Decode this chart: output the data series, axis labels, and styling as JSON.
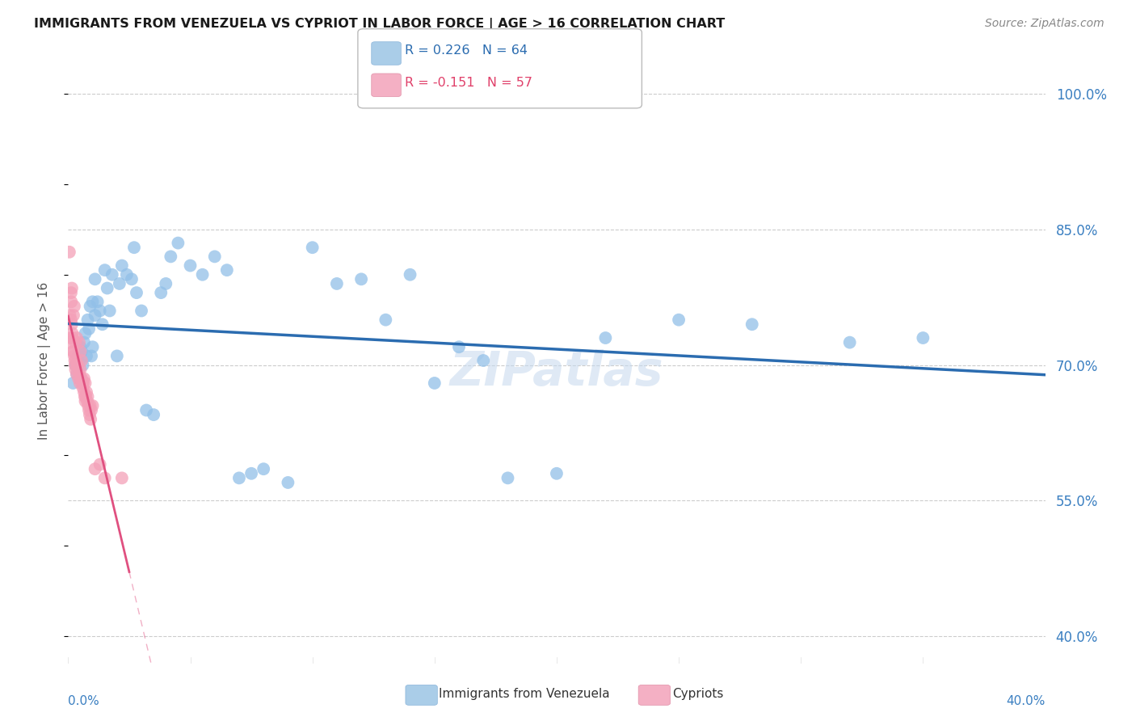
{
  "title": "IMMIGRANTS FROM VENEZUELA VS CYPRIOT IN LABOR FORCE | AGE > 16 CORRELATION CHART",
  "source": "Source: ZipAtlas.com",
  "ylabel": "In Labor Force | Age > 16",
  "yticks": [
    40.0,
    55.0,
    70.0,
    85.0,
    100.0
  ],
  "ytick_labels": [
    "40.0%",
    "55.0%",
    "70.0%",
    "85.0%",
    "100.0%"
  ],
  "xmin": 0.0,
  "xmax": 40.0,
  "ymin": 37.0,
  "ymax": 104.0,
  "watermark": "ZIPatlas",
  "venezuela_R": 0.226,
  "venezuela_N": 64,
  "cypriot_R": -0.151,
  "cypriot_N": 57,
  "venezuela_color": "#92c0e8",
  "cypriot_color": "#f4a0b8",
  "trendline_venezuela_color": "#2b6cb0",
  "trendline_cypriot_color": "#e05080",
  "venezuela_x": [
    0.2,
    0.3,
    0.35,
    0.4,
    0.45,
    0.5,
    0.5,
    0.55,
    0.6,
    0.65,
    0.7,
    0.75,
    0.8,
    0.85,
    0.9,
    0.95,
    1.0,
    1.0,
    1.1,
    1.1,
    1.2,
    1.3,
    1.4,
    1.5,
    1.6,
    1.7,
    1.8,
    2.0,
    2.1,
    2.2,
    2.4,
    2.6,
    2.7,
    2.8,
    3.0,
    3.2,
    3.5,
    3.8,
    4.0,
    4.2,
    4.5,
    5.0,
    5.5,
    6.0,
    6.5,
    7.0,
    7.5,
    8.0,
    9.0,
    10.0,
    11.0,
    12.0,
    13.0,
    14.0,
    15.0,
    16.0,
    17.0,
    18.0,
    20.0,
    22.0,
    25.0,
    28.0,
    32.0,
    35.0
  ],
  "venezuela_y": [
    68.0,
    70.0,
    69.0,
    71.0,
    70.5,
    72.0,
    68.5,
    71.5,
    70.0,
    72.5,
    73.5,
    71.0,
    75.0,
    74.0,
    76.5,
    71.0,
    77.0,
    72.0,
    79.5,
    75.5,
    77.0,
    76.0,
    74.5,
    80.5,
    78.5,
    76.0,
    80.0,
    71.0,
    79.0,
    81.0,
    80.0,
    79.5,
    83.0,
    78.0,
    76.0,
    65.0,
    64.5,
    78.0,
    79.0,
    82.0,
    83.5,
    81.0,
    80.0,
    82.0,
    80.5,
    57.5,
    58.0,
    58.5,
    57.0,
    83.0,
    79.0,
    79.5,
    75.0,
    80.0,
    68.0,
    72.0,
    70.5,
    57.5,
    58.0,
    73.0,
    75.0,
    74.5,
    72.5,
    73.0
  ],
  "cypriot_x": [
    0.05,
    0.07,
    0.08,
    0.1,
    0.12,
    0.12,
    0.13,
    0.15,
    0.15,
    0.17,
    0.18,
    0.2,
    0.22,
    0.22,
    0.25,
    0.25,
    0.27,
    0.28,
    0.3,
    0.3,
    0.32,
    0.35,
    0.35,
    0.38,
    0.4,
    0.42,
    0.45,
    0.45,
    0.48,
    0.5,
    0.5,
    0.52,
    0.55,
    0.55,
    0.58,
    0.6,
    0.62,
    0.65,
    0.65,
    0.68,
    0.7,
    0.7,
    0.72,
    0.75,
    0.78,
    0.8,
    0.82,
    0.85,
    0.88,
    0.9,
    0.92,
    0.95,
    1.0,
    1.1,
    1.3,
    1.5,
    2.2
  ],
  "cypriot_y": [
    82.5,
    75.5,
    72.5,
    73.0,
    75.0,
    78.0,
    77.0,
    74.5,
    78.5,
    73.5,
    73.0,
    71.5,
    71.5,
    75.5,
    71.0,
    76.5,
    70.5,
    70.0,
    69.5,
    72.5,
    70.5,
    73.0,
    69.0,
    70.0,
    70.0,
    68.5,
    69.0,
    72.5,
    68.0,
    69.5,
    71.5,
    68.5,
    68.5,
    70.5,
    68.0,
    67.5,
    68.0,
    68.5,
    67.0,
    66.5,
    68.0,
    66.0,
    66.5,
    67.0,
    66.0,
    66.5,
    65.5,
    65.0,
    64.5,
    65.5,
    64.0,
    65.0,
    65.5,
    58.5,
    59.0,
    57.5,
    57.5
  ]
}
